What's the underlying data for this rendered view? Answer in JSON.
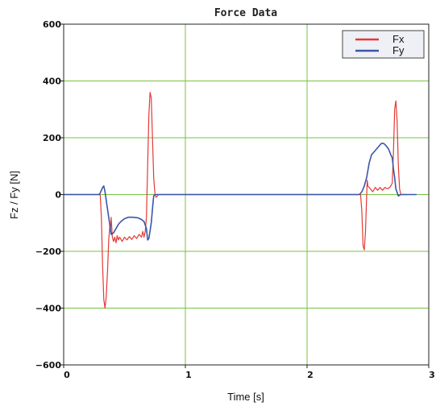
{
  "chart_data": {
    "type": "line",
    "title": "Force Data",
    "xlabel": "Time [s]",
    "ylabel": "Fz / Fy [N]",
    "xlim": [
      0,
      3
    ],
    "ylim": [
      -600,
      600
    ],
    "x_ticks": [
      0,
      1,
      2,
      3
    ],
    "x_tick_labels": [
      "0",
      "1",
      "2",
      "3"
    ],
    "y_ticks": [
      -600,
      -400,
      -200,
      0,
      200,
      400,
      600
    ],
    "y_tick_labels": [
      "−600",
      "−400",
      "−200",
      "0",
      "200",
      "400",
      "600"
    ],
    "grid": true,
    "grid_color": "#7ac143",
    "legend_position": "top-right",
    "series": [
      {
        "name": "Fx",
        "color": "#e53935",
        "points": [
          [
            0,
            0
          ],
          [
            0.3,
            0
          ],
          [
            0.31,
            -80
          ],
          [
            0.32,
            -250
          ],
          [
            0.33,
            -370
          ],
          [
            0.34,
            -400
          ],
          [
            0.35,
            -360
          ],
          [
            0.36,
            -270
          ],
          [
            0.37,
            -160
          ],
          [
            0.38,
            -110
          ],
          [
            0.385,
            -120
          ],
          [
            0.39,
            -80
          ],
          [
            0.4,
            -150
          ],
          [
            0.41,
            -165
          ],
          [
            0.42,
            -150
          ],
          [
            0.43,
            -170
          ],
          [
            0.44,
            -145
          ],
          [
            0.45,
            -160
          ],
          [
            0.46,
            -150
          ],
          [
            0.48,
            -165
          ],
          [
            0.5,
            -150
          ],
          [
            0.52,
            -160
          ],
          [
            0.54,
            -148
          ],
          [
            0.56,
            -158
          ],
          [
            0.58,
            -145
          ],
          [
            0.6,
            -155
          ],
          [
            0.62,
            -140
          ],
          [
            0.64,
            -150
          ],
          [
            0.65,
            -130
          ],
          [
            0.66,
            -150
          ],
          [
            0.67,
            -130
          ],
          [
            0.68,
            -80
          ],
          [
            0.69,
            100
          ],
          [
            0.7,
            280
          ],
          [
            0.71,
            360
          ],
          [
            0.72,
            340
          ],
          [
            0.73,
            200
          ],
          [
            0.74,
            60
          ],
          [
            0.75,
            0
          ],
          [
            0.76,
            -10
          ],
          [
            0.78,
            0
          ],
          [
            2.4,
            0
          ],
          [
            2.44,
            0
          ],
          [
            2.45,
            -60
          ],
          [
            2.46,
            -180
          ],
          [
            2.47,
            -195
          ],
          [
            2.48,
            -130
          ],
          [
            2.49,
            0
          ],
          [
            2.495,
            50
          ],
          [
            2.5,
            30
          ],
          [
            2.52,
            20
          ],
          [
            2.54,
            10
          ],
          [
            2.56,
            25
          ],
          [
            2.58,
            15
          ],
          [
            2.6,
            25
          ],
          [
            2.62,
            15
          ],
          [
            2.64,
            25
          ],
          [
            2.66,
            20
          ],
          [
            2.68,
            25
          ],
          [
            2.7,
            40
          ],
          [
            2.71,
            150
          ],
          [
            2.72,
            300
          ],
          [
            2.73,
            330
          ],
          [
            2.74,
            260
          ],
          [
            2.75,
            100
          ],
          [
            2.76,
            20
          ],
          [
            2.77,
            0
          ],
          [
            2.78,
            0
          ],
          [
            2.82,
            0
          ]
        ]
      },
      {
        "name": "Fy",
        "color": "#3a56a8",
        "points": [
          [
            0,
            0
          ],
          [
            0.29,
            0
          ],
          [
            0.3,
            5
          ],
          [
            0.32,
            25
          ],
          [
            0.33,
            30
          ],
          [
            0.34,
            10
          ],
          [
            0.35,
            -20
          ],
          [
            0.37,
            -80
          ],
          [
            0.39,
            -140
          ],
          [
            0.41,
            -135
          ],
          [
            0.43,
            -120
          ],
          [
            0.45,
            -105
          ],
          [
            0.47,
            -95
          ],
          [
            0.5,
            -85
          ],
          [
            0.53,
            -80
          ],
          [
            0.57,
            -80
          ],
          [
            0.61,
            -82
          ],
          [
            0.64,
            -88
          ],
          [
            0.66,
            -95
          ],
          [
            0.68,
            -120
          ],
          [
            0.69,
            -160
          ],
          [
            0.7,
            -155
          ],
          [
            0.72,
            -100
          ],
          [
            0.73,
            -50
          ],
          [
            0.74,
            -5
          ],
          [
            0.75,
            0
          ],
          [
            0.78,
            0
          ],
          [
            2.3,
            0
          ],
          [
            2.43,
            0
          ],
          [
            2.45,
            10
          ],
          [
            2.47,
            30
          ],
          [
            2.49,
            60
          ],
          [
            2.51,
            110
          ],
          [
            2.53,
            140
          ],
          [
            2.55,
            150
          ],
          [
            2.57,
            160
          ],
          [
            2.59,
            170
          ],
          [
            2.61,
            180
          ],
          [
            2.63,
            180
          ],
          [
            2.65,
            172
          ],
          [
            2.67,
            160
          ],
          [
            2.69,
            138
          ],
          [
            2.7,
            130
          ],
          [
            2.71,
            90
          ],
          [
            2.72,
            60
          ],
          [
            2.73,
            20
          ],
          [
            2.75,
            -5
          ],
          [
            2.77,
            0
          ],
          [
            2.82,
            0
          ],
          [
            2.9,
            0
          ]
        ]
      }
    ]
  }
}
